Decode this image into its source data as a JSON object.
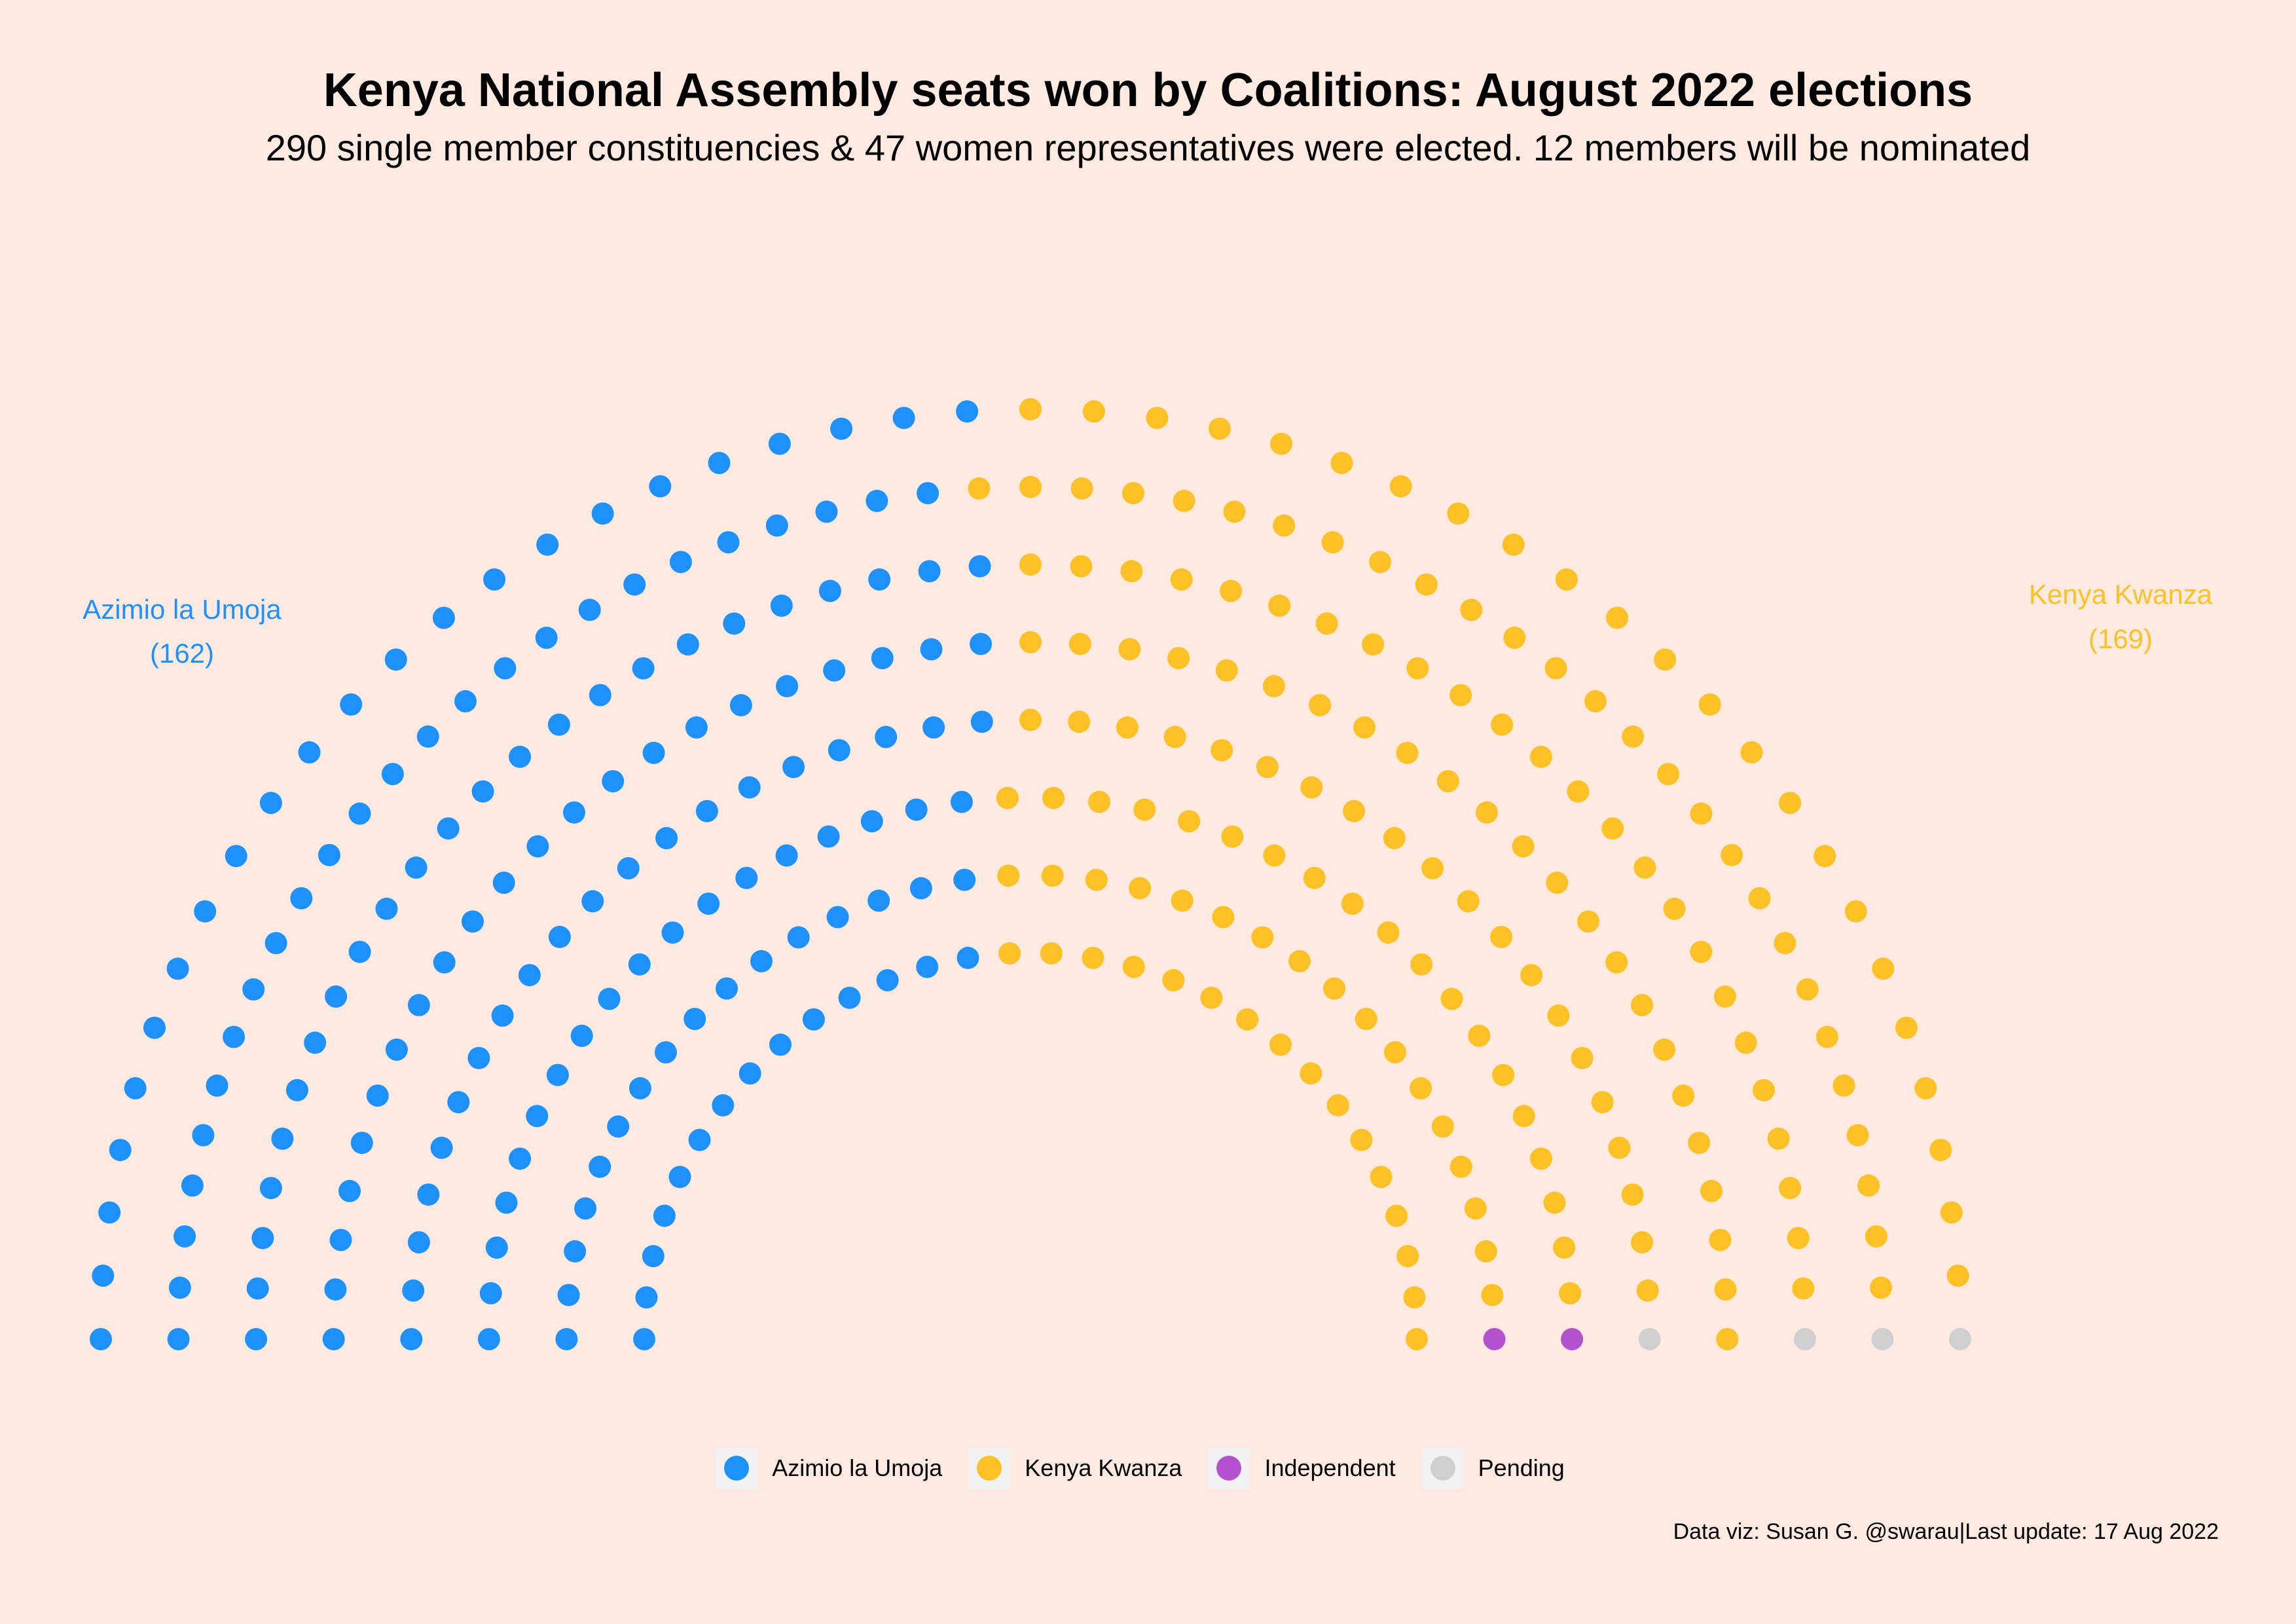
{
  "title": "Kenya National Assembly seats won by Coalitions: August 2022 elections",
  "subtitle": "290 single member constituencies & 47 women representatives were elected. 12 members will be nominated",
  "caption": "Data viz: Susan G. @swarau|Last update: 17 Aug 2022",
  "colors": {
    "background": "#FFEAE2",
    "azimio": "#1E90FF",
    "kwanza": "#FFC125",
    "independent": "#B452CD",
    "pending": "#CFCFCF"
  },
  "side_labels": {
    "left": {
      "name": "Azimio la Umoja",
      "count": "(162)"
    },
    "right": {
      "name": "Kenya Kwanza",
      "count": "(169)"
    }
  },
  "legend": [
    {
      "label": "Azimio la Umoja",
      "color": "#1E90FF"
    },
    {
      "label": "Kenya Kwanza",
      "color": "#FFC125"
    },
    {
      "label": "Independent",
      "color": "#B452CD"
    },
    {
      "label": "Pending",
      "color": "#CFCFCF"
    }
  ],
  "chart_data": {
    "type": "parliament",
    "title": "Kenya National Assembly seats won by Coalitions: August 2022 elections",
    "categories": [
      "Azimio la Umoja",
      "Kenya Kwanza",
      "Independent",
      "Pending"
    ],
    "values": [
      162,
      169,
      2,
      4
    ],
    "total_seats": 337,
    "rows": 8,
    "seats_per_row": [
      30,
      34,
      38,
      41,
      45,
      49,
      53,
      47
    ],
    "seat_order": [
      "Azimio la Umoja",
      "Kenya Kwanza",
      "Independent",
      "Pending"
    ],
    "legend_position": "bottom"
  }
}
